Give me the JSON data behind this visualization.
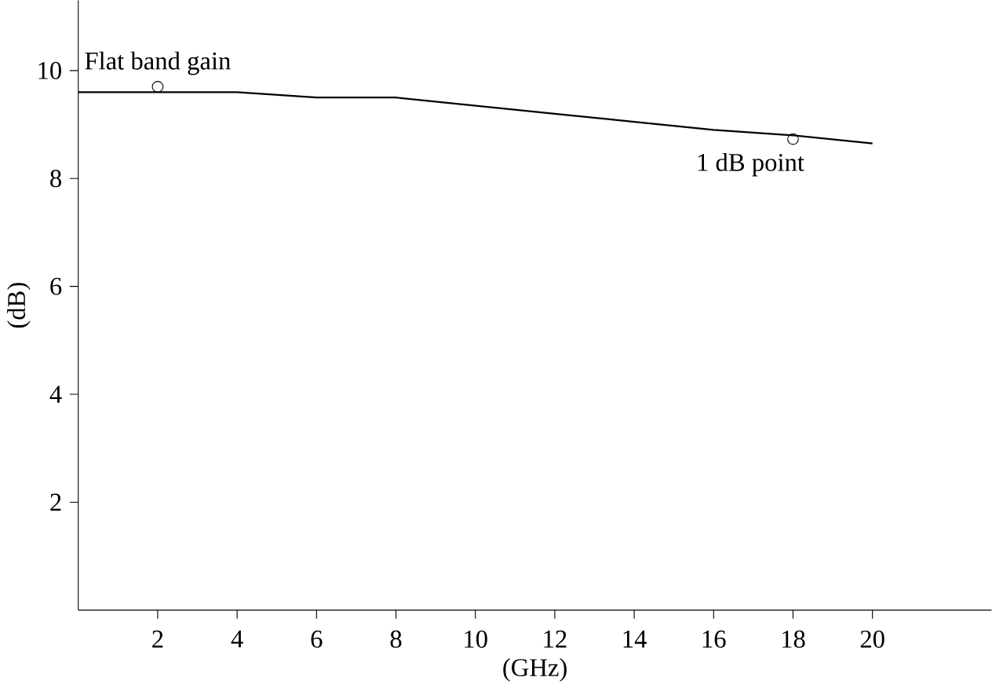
{
  "chart_data": {
    "type": "line",
    "xlabel": "(GHz)",
    "ylabel": "(dB)",
    "xlim": [
      0,
      23
    ],
    "ylim": [
      0,
      11.3
    ],
    "xticks": [
      2,
      4,
      6,
      8,
      10,
      12,
      14,
      16,
      18,
      20
    ],
    "yticks": [
      2,
      4,
      6,
      8,
      10
    ],
    "grid": false,
    "series": [
      {
        "color": "#000000",
        "x": [
          0,
          2,
          4,
          6,
          7,
          8,
          10,
          12,
          14,
          16,
          18,
          20
        ],
        "values": [
          9.6,
          9.6,
          9.6,
          9.5,
          9.5,
          9.5,
          9.35,
          9.2,
          9.05,
          8.9,
          8.8,
          8.65
        ]
      },
      {
        "type": "scatter",
        "color": "#000000",
        "marker": "circle",
        "x": [
          2,
          18
        ],
        "values": [
          9.7,
          8.73
        ]
      }
    ],
    "annotations": [
      {
        "text": "Flat band gain",
        "x": 2,
        "y": 9.7
      },
      {
        "text": "1 dB point",
        "x": 18,
        "y": 8.73
      }
    ]
  }
}
